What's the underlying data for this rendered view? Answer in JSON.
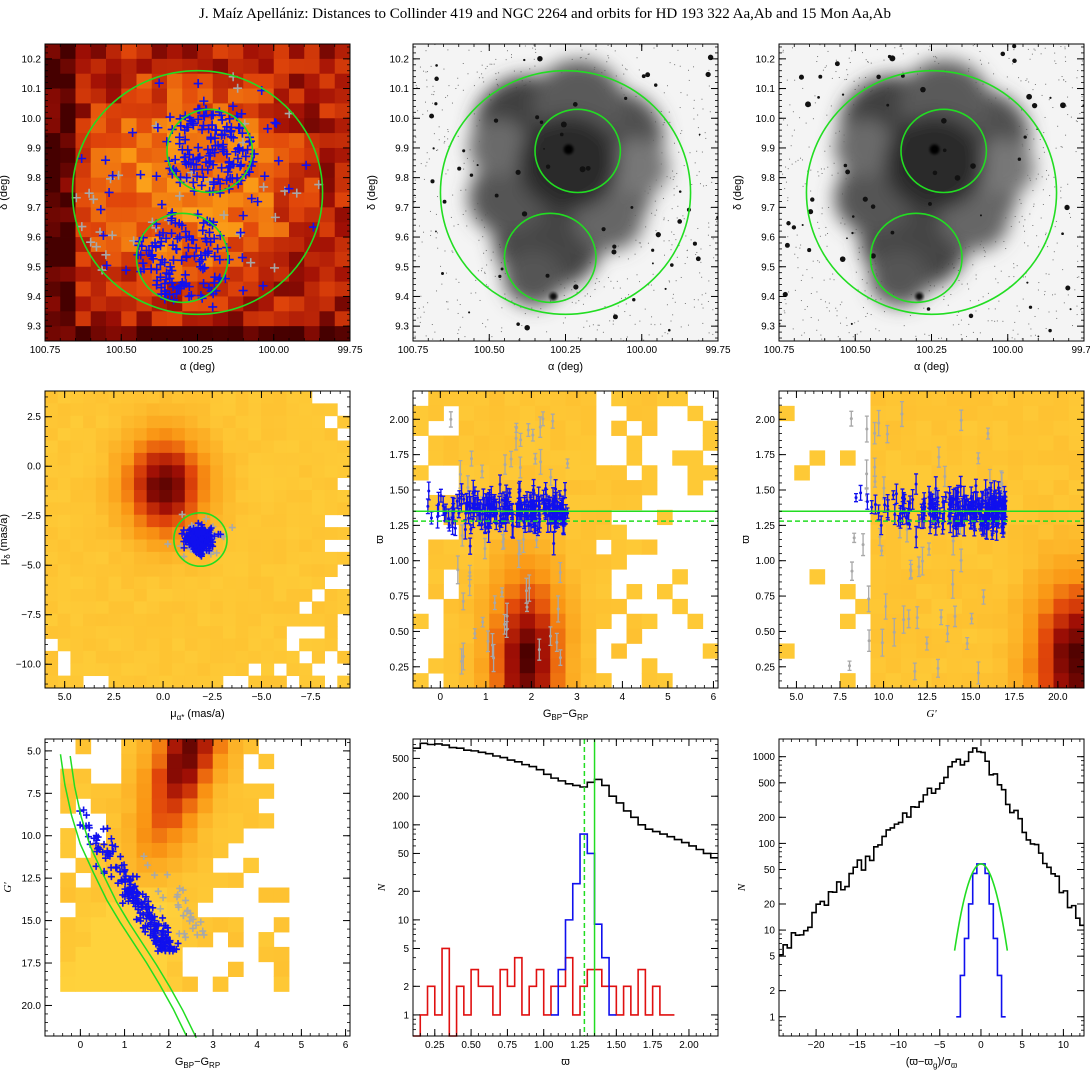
{
  "page_title": "J. Maíz Apellániz: Distances to Collinder 419 and NGC 2264 and orbits for HD 193 322 Aa,Ab and 15 Mon Aa,Ab",
  "colors": {
    "members": "#1010ee",
    "nonmembers": "#a8a8a8",
    "circles": "#22dd22",
    "red_hist": "#e01010",
    "bg_hist": "#000000"
  },
  "chart_data": [
    {
      "id": "sky_density",
      "type": "heatmap",
      "xlabel": "α (deg)",
      "ylabel": "δ (deg)",
      "xlim": [
        100.75,
        99.75
      ],
      "ylim": [
        9.25,
        10.25
      ],
      "xticks": [
        "100.75",
        "100.50",
        "100.25",
        "100.00",
        "99.75"
      ],
      "yticks": [
        "9.3",
        "9.4",
        "9.5",
        "9.6",
        "9.7",
        "9.8",
        "9.9",
        "10.0",
        "10.1",
        "10.2"
      ],
      "circles": [
        {
          "ra": 100.25,
          "dec": 9.75,
          "r_deg": 0.41
        },
        {
          "ra": 100.21,
          "dec": 9.89,
          "r_deg": 0.14
        },
        {
          "ra": 100.3,
          "dec": 9.53,
          "r_deg": 0.15
        }
      ],
      "member_count": 260,
      "nonmember_count": 35
    },
    {
      "id": "sky_image_1",
      "type": "other",
      "xlabel": "α (deg)",
      "ylabel": "δ (deg)",
      "xlim": [
        100.75,
        99.75
      ],
      "ylim": [
        9.25,
        10.25
      ],
      "xticks": [
        "100.75",
        "100.50",
        "100.25",
        "100.00",
        "99.75"
      ],
      "yticks": [
        "9.3",
        "9.4",
        "9.5",
        "9.6",
        "9.7",
        "9.8",
        "9.9",
        "10.0",
        "10.1",
        "10.2"
      ],
      "circles": [
        {
          "ra": 100.25,
          "dec": 9.75,
          "r_deg": 0.41
        },
        {
          "ra": 100.21,
          "dec": 9.89,
          "r_deg": 0.14
        },
        {
          "ra": 100.3,
          "dec": 9.53,
          "r_deg": 0.15
        }
      ]
    },
    {
      "id": "sky_image_2",
      "type": "other",
      "xlabel": "α (deg)",
      "ylabel": "δ (deg)",
      "xlim": [
        100.75,
        99.75
      ],
      "ylim": [
        9.25,
        10.25
      ],
      "xticks": [
        "100.75",
        "100.50",
        "100.25",
        "100.00",
        "99.75"
      ],
      "yticks": [
        "9.3",
        "9.4",
        "9.5",
        "9.6",
        "9.7",
        "9.8",
        "9.9",
        "10.0",
        "10.1",
        "10.2"
      ],
      "circles": [
        {
          "ra": 100.25,
          "dec": 9.75,
          "r_deg": 0.41
        },
        {
          "ra": 100.21,
          "dec": 9.89,
          "r_deg": 0.14
        },
        {
          "ra": 100.3,
          "dec": 9.53,
          "r_deg": 0.15
        }
      ]
    },
    {
      "id": "proper_motion",
      "type": "heatmap",
      "xlabel": "μα* (mas/a)",
      "ylabel": "μδ (mas/a)",
      "xlim": [
        6,
        -9.5
      ],
      "ylim": [
        -11.2,
        3.8
      ],
      "xticks": [
        "5.0",
        "2.5",
        "0.0",
        "−2.5",
        "−5.0",
        "−7.5"
      ],
      "yticks": [
        "−10.0",
        "−7.5",
        "−5.0",
        "−2.5",
        "0.0",
        "2.5"
      ],
      "circle": {
        "x": -1.9,
        "y": -3.7,
        "r": 1.35
      },
      "field_peak": {
        "x": -0.1,
        "y": -1.0
      }
    },
    {
      "id": "parallax_vs_color",
      "type": "scatter",
      "xlabel": "GBP−GRP",
      "ylabel": "ϖ",
      "xlim": [
        -0.6,
        6.1
      ],
      "ylim": [
        0.1,
        2.2
      ],
      "xticks": [
        "0",
        "1",
        "2",
        "3",
        "4",
        "5",
        "6"
      ],
      "yticks": [
        "0.25",
        "0.50",
        "0.75",
        "1.00",
        "1.25",
        "1.50",
        "1.75",
        "2.00"
      ],
      "hlines": [
        {
          "y": 1.35,
          "style": "solid"
        },
        {
          "y": 1.28,
          "style": "dashed"
        }
      ],
      "member_range": {
        "x": [
          -0.3,
          2.8
        ],
        "y": [
          1.15,
          1.55
        ]
      }
    },
    {
      "id": "parallax_vs_mag",
      "type": "scatter",
      "xlabel": "G'",
      "ylabel": "ϖ",
      "xlim": [
        4,
        21.5
      ],
      "ylim": [
        0.1,
        2.2
      ],
      "xticks": [
        "5.0",
        "7.5",
        "10.0",
        "12.5",
        "15.0",
        "17.5",
        "20.0"
      ],
      "yticks": [
        "0.25",
        "0.50",
        "0.75",
        "1.00",
        "1.25",
        "1.50",
        "1.75",
        "2.00"
      ],
      "hlines": [
        {
          "y": 1.35,
          "style": "solid"
        },
        {
          "y": 1.28,
          "style": "dashed"
        }
      ],
      "member_range": {
        "x": [
          7.3,
          17
        ],
        "y": [
          1.15,
          1.55
        ]
      }
    },
    {
      "id": "cmd",
      "type": "scatter",
      "xlabel": "GBP−GRP",
      "ylabel": "G'",
      "xlim": [
        -0.8,
        6.1
      ],
      "ylim": [
        21.8,
        4.3
      ],
      "xticks": [
        "0",
        "1",
        "2",
        "3",
        "4",
        "5",
        "6"
      ],
      "yticks": [
        "5.0",
        "7.5",
        "10.0",
        "12.5",
        "15.0",
        "17.5",
        "20.0"
      ],
      "isochrone_points": [
        [
          -0.45,
          5.2
        ],
        [
          -0.35,
          7.0
        ],
        [
          -0.2,
          8.8
        ],
        [
          0.0,
          10.5
        ],
        [
          0.3,
          12.2
        ],
        [
          0.6,
          13.8
        ],
        [
          0.9,
          15.1
        ],
        [
          1.2,
          16.3
        ],
        [
          1.5,
          17.5
        ],
        [
          1.8,
          18.8
        ],
        [
          2.1,
          20.2
        ],
        [
          2.4,
          21.8
        ]
      ],
      "member_range": {
        "x": [
          -0.2,
          2.6
        ],
        "y": [
          8,
          16.8
        ]
      }
    },
    {
      "id": "parallax_histogram",
      "type": "bar",
      "xlabel": "ϖ",
      "ylabel": "N",
      "xlim": [
        0.1,
        2.2
      ],
      "ylim": [
        0.6,
        800
      ],
      "yscale": "log",
      "xticks": [
        "0.25",
        "0.50",
        "0.75",
        "1.00",
        "1.25",
        "1.50",
        "1.75",
        "2.00"
      ],
      "yticks": [
        "1",
        "2",
        "5",
        "10",
        "20",
        "50",
        "100",
        "200",
        "500"
      ],
      "vlines": [
        {
          "x": 1.35,
          "style": "solid"
        },
        {
          "x": 1.28,
          "style": "dashed"
        }
      ],
      "bin_width": 0.05,
      "series": [
        {
          "color": "black",
          "bins_start": 0.1,
          "values": [
            640,
            720,
            700,
            710,
            690,
            650,
            640,
            610,
            600,
            580,
            560,
            530,
            510,
            480,
            460,
            430,
            410,
            380,
            340,
            310,
            290,
            270,
            260,
            250,
            280,
            300,
            260,
            200,
            170,
            140,
            120,
            100,
            90,
            85,
            80,
            75,
            70,
            65,
            60,
            55,
            50,
            45
          ]
        },
        {
          "color": "red",
          "bins_start": 0.1,
          "values": [
            0.6,
            1,
            2,
            1,
            5,
            0.6,
            2,
            1,
            3,
            2,
            2,
            1,
            3,
            2,
            4,
            1,
            2,
            3,
            1,
            2,
            2,
            4,
            1,
            2,
            3,
            3,
            2,
            2,
            1,
            2,
            1,
            3,
            1,
            2,
            1,
            1
          ]
        },
        {
          "color": "blue",
          "bins_start": 1.05,
          "values": [
            1,
            3,
            10,
            24,
            80,
            50,
            9,
            4,
            1
          ]
        }
      ]
    },
    {
      "id": "normalized_residual_histogram",
      "type": "bar",
      "xlabel": "(ϖ−ϖg)/σϖ",
      "ylabel": "N",
      "xlim": [
        -24.5,
        12.5
      ],
      "ylim": [
        0.6,
        1600
      ],
      "yscale": "log",
      "xticks": [
        "−20",
        "−15",
        "−10",
        "−5",
        "0",
        "5",
        "10"
      ],
      "yticks": [
        "1",
        "2",
        "5",
        "10",
        "20",
        "50",
        "100",
        "200",
        "500",
        "1000"
      ],
      "bin_width": 0.5,
      "series": [
        {
          "color": "black",
          "profile": "asymmetric peak ~1350 at −1, 6 at −24.5, 12 at 12"
        },
        {
          "color": "blue",
          "bins_start": -3,
          "values": [
            1,
            3,
            8,
            20,
            45,
            58,
            58,
            45,
            20,
            8,
            3,
            1
          ]
        },
        {
          "color": "green",
          "model": "gaussian",
          "mu": 0,
          "sigma": 1,
          "amplitude": 58
        }
      ]
    }
  ]
}
